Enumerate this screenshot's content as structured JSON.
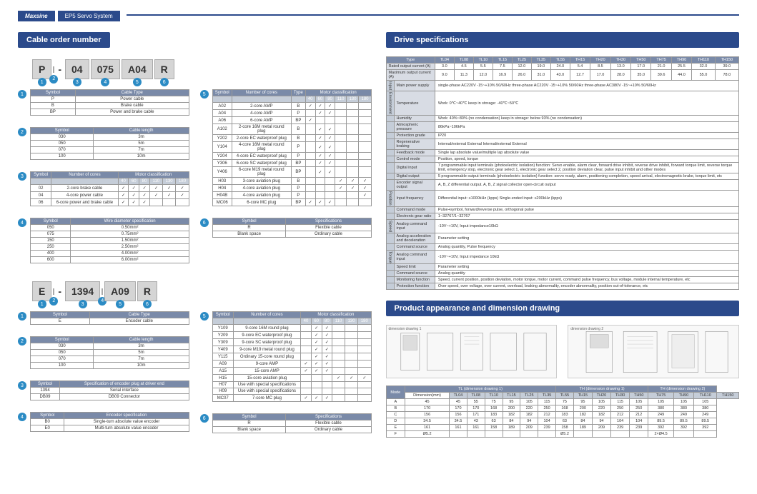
{
  "brand": "Maxsine",
  "subtitle": "EP5 Servo System",
  "sections": {
    "cable": "Cable order number",
    "drive": "Drive specifications",
    "product": "Product appearance and dimension drawing"
  },
  "partcode1": [
    "P",
    "",
    "-",
    "04",
    "075",
    "A04",
    "R"
  ],
  "partcode2": [
    "E",
    "",
    "-",
    "1394",
    "",
    "A09",
    "R"
  ],
  "t1_1": {
    "headers": [
      "Symbol",
      "Cable Type"
    ],
    "rows": [
      [
        "P",
        "Power cable"
      ],
      [
        "B",
        "Brake cable"
      ],
      [
        "BP",
        "Power and brake cable"
      ]
    ]
  },
  "t1_2": {
    "headers": [
      "Symbol",
      "Cable length"
    ],
    "rows": [
      [
        "030",
        "3m"
      ],
      [
        "050",
        "5m"
      ],
      [
        "070",
        "7m"
      ],
      [
        "100",
        "10m"
      ]
    ]
  },
  "t1_3": {
    "headers": [
      "Symbol",
      "Number of cores"
    ],
    "sub": [
      "40",
      "60",
      "80",
      "110",
      "130",
      "180"
    ],
    "rows": [
      [
        "02",
        "2-core brake cable",
        "✓",
        "✓",
        "✓",
        "✓",
        "✓",
        "✓"
      ],
      [
        "04",
        "4-core power cable",
        "✓",
        "✓",
        "✓",
        "✓",
        "✓",
        "✓"
      ],
      [
        "06",
        "6-core power and brake cable",
        "✓",
        "✓",
        "✓",
        "",
        "",
        ""
      ]
    ]
  },
  "t1_4": {
    "headers": [
      "Symbol",
      "Wire diameter specification"
    ],
    "rows": [
      [
        "050",
        "0.50mm²"
      ],
      [
        "075",
        "0.75mm²"
      ],
      [
        "150",
        "1.50mm²"
      ],
      [
        "250",
        "2.50mm²"
      ],
      [
        "400",
        "4.00mm²"
      ],
      [
        "600",
        "6.00mm²"
      ]
    ]
  },
  "t1_5": {
    "headers": [
      "Symbol",
      "Number of cores",
      "Type"
    ],
    "sub": [
      "40",
      "60",
      "80",
      "110",
      "130",
      "180"
    ],
    "rows": [
      [
        "A02",
        "2-core AMP",
        "B",
        "✓",
        "✓",
        "✓",
        "",
        "",
        ""
      ],
      [
        "A04",
        "4-core AMP",
        "P",
        "",
        "✓",
        "✓",
        "",
        "",
        ""
      ],
      [
        "A06",
        "6-core AMP",
        "BP",
        "✓",
        "",
        "",
        "",
        "",
        ""
      ],
      [
        "A102",
        "2-core 16M metal round plug",
        "B",
        "",
        "✓",
        "✓",
        "",
        "",
        ""
      ],
      [
        "Y202",
        "2-core EC waterproof plug",
        "B",
        "",
        "✓",
        "✓",
        "",
        "",
        ""
      ],
      [
        "Y104",
        "4-core 16M metal round plug",
        "P",
        "",
        "✓",
        "✓",
        "",
        "",
        ""
      ],
      [
        "Y204",
        "4-core EC waterproof plug",
        "P",
        "",
        "✓",
        "✓",
        "",
        "",
        ""
      ],
      [
        "Y306",
        "6-core SC waterproof plug",
        "BP",
        "",
        "✓",
        "✓",
        "",
        "",
        ""
      ],
      [
        "Y406",
        "6-core M19 metal round plug",
        "BP",
        "",
        "✓",
        "✓",
        "",
        "",
        ""
      ],
      [
        "H03",
        "3-core aviation plug",
        "B",
        "",
        "",
        "",
        "✓",
        "✓",
        "✓"
      ],
      [
        "H04",
        "4-core aviation plug",
        "P",
        "",
        "",
        "",
        "✓",
        "✓",
        "✓"
      ],
      [
        "H04B",
        "4-core aviation plug",
        "P",
        "",
        "",
        "",
        "",
        "",
        "✓"
      ],
      [
        "MC06",
        "6-core MC plug",
        "BP",
        "✓",
        "✓",
        "✓",
        "",
        "",
        ""
      ]
    ]
  },
  "t1_6": {
    "headers": [
      "Symbol",
      "Specifications"
    ],
    "rows": [
      [
        "R",
        "Flexible cable"
      ],
      [
        "Blank space",
        "Ordinary cable"
      ]
    ]
  },
  "t2_1": {
    "headers": [
      "Symbol",
      "Cable Type"
    ],
    "rows": [
      [
        "E",
        "Encoder cable"
      ]
    ]
  },
  "t2_2": {
    "headers": [
      "Symbol",
      "Cable length"
    ],
    "rows": [
      [
        "030",
        "3m"
      ],
      [
        "050",
        "5m"
      ],
      [
        "070",
        "7m"
      ],
      [
        "100",
        "10m"
      ]
    ]
  },
  "t2_3": {
    "headers": [
      "Symbol",
      "Specification of encoder plug at driver end"
    ],
    "rows": [
      [
        "1394",
        "Serial interface"
      ],
      [
        "DB09",
        "DB09 Connector"
      ]
    ]
  },
  "t2_4": {
    "headers": [
      "Symbol",
      "Encoder specification"
    ],
    "rows": [
      [
        "B0",
        "Single-turn absolute value encoder"
      ],
      [
        "E0",
        "Multi-turn absolute value encoder"
      ]
    ]
  },
  "t2_5": {
    "headers": [
      "Symbol",
      "Number of cores"
    ],
    "sub": [
      "40",
      "60",
      "80",
      "110",
      "130",
      "180"
    ],
    "rows": [
      [
        "Y109",
        "9-core 16M round plug",
        "",
        "✓",
        "✓",
        "",
        "",
        ""
      ],
      [
        "Y209",
        "9-core EC waterproof plug",
        "",
        "✓",
        "✓",
        "",
        "",
        ""
      ],
      [
        "Y309",
        "9-core SC waterproof plug",
        "",
        "✓",
        "✓",
        "",
        "",
        ""
      ],
      [
        "Y409",
        "9-core M19 metal round plug",
        "",
        "✓",
        "✓",
        "",
        "",
        ""
      ],
      [
        "Y115",
        "Ordinary 15-core round plug",
        "",
        "✓",
        "✓",
        "",
        "",
        ""
      ],
      [
        "A09",
        "9-core AMP",
        "✓",
        "✓",
        "✓",
        "",
        "",
        ""
      ],
      [
        "A15",
        "15-core AMP",
        "✓",
        "✓",
        "✓",
        "",
        "",
        ""
      ],
      [
        "H15",
        "15-core aviation plug",
        "",
        "",
        "",
        "✓",
        "✓",
        "✓"
      ],
      [
        "H07",
        "Use with special specifications",
        "",
        "",
        "",
        "",
        "",
        ""
      ],
      [
        "H09",
        "Use with special specifications",
        "",
        "",
        "",
        "",
        "",
        ""
      ],
      [
        "MC07",
        "7-core MC plug",
        "✓",
        "✓",
        "✓",
        "",
        "",
        ""
      ]
    ]
  },
  "t2_6": {
    "headers": [
      "Symbol",
      "Specifications"
    ],
    "rows": [
      [
        "R",
        "Flexible cable"
      ],
      [
        "Blank space",
        "Ordinary cable"
      ]
    ]
  },
  "drive_types": [
    "TL04",
    "TL08",
    "TL10",
    "TL15",
    "TL25",
    "TL35",
    "TL55",
    "TH15",
    "TH20",
    "TH30",
    "TH50",
    "TH75",
    "TH90",
    "TH110",
    "TH150"
  ],
  "drive_rows": [
    {
      "h": "Rated output current (A)",
      "v": [
        "3.0",
        "4.5",
        "5.5",
        "7.5",
        "12.0",
        "19.0",
        "24.0",
        "5.4",
        "8.5",
        "13.0",
        "17.0",
        "21.0",
        "25.5",
        "32.0",
        "39.0"
      ]
    },
    {
      "h": "Maximum output current (A)",
      "v": [
        "9.0",
        "11.3",
        "12.0",
        "16.9",
        "26.0",
        "31.0",
        "43.0",
        "12.7",
        "17.0",
        "28.0",
        "35.0",
        "39.6",
        "44.0",
        "55.0",
        "78.0"
      ]
    }
  ],
  "drive_specs": [
    {
      "g": "Input",
      "h": "Main power supply",
      "v": "single-phase AC220V  -15~+10% 50/60Hz          three-phase AC220V  -15~+10% 50/60Hz          three-phase AC380V  -15~+10% 50/60Hz"
    },
    {
      "g": "Environment",
      "h": "Temperature",
      "v": "Work: 0℃~40℃    keep in storage: -40℃~50℃"
    },
    {
      "g": "",
      "h": "Humidity",
      "v": "Work: 40%~80% (no condensation)    keep in storage: below 93% (no condensation)"
    },
    {
      "g": "",
      "h": "Atmospheric pressure",
      "v": "86kPa~106kPa"
    },
    {
      "g": "",
      "h": "Protection grade",
      "v": "IP20"
    },
    {
      "g": "",
      "h": "Regenerative braking",
      "v": "Internal/external          External          Internal/external          External"
    },
    {
      "g": "",
      "h": "Feedback mode",
      "v": "Single lap absolute value/multiple lap absolute value"
    },
    {
      "g": "",
      "h": "Control mode",
      "v": "Position, speed, torque"
    },
    {
      "g": "",
      "h": "Digital input",
      "v": "7 programmable input terminals (photoelectric isolation) function: Servo enable, alarm clear, forward drive inhibit, reverse drive inhibit, forward torque limit, reverse torque limit, emergency stop, electronic gear select 1, electronic gear select 2, position deviation clear, pulse input inhibit and other modes"
    },
    {
      "g": "",
      "h": "Digital output",
      "v": "5 programmable output terminals (photoelectric isolation) function: servo ready, alarm, positioning completion, speed arrival, electromagnetic brake, torque limit, etc"
    },
    {
      "g": "",
      "h": "Encoder signal output",
      "v": "A, B, Z differential output. A, B, Z signal collector open-circuit output"
    },
    {
      "g": "Position",
      "h": "Input frequency",
      "v": "Differential input: ≤1000kHz (kpps)  Single-ended input: ≤200kHz (kpps)"
    },
    {
      "g": "",
      "h": "Command mode",
      "v": "Pulse+symbol, forward/reverse pulse, orthogonal pulse"
    },
    {
      "g": "",
      "h": "Electronic gear ratio",
      "v": "1~32767/1~32767"
    },
    {
      "g": "Speed",
      "h": "Analog command input",
      "v": "-10V~+10V, Input impedance10kΩ"
    },
    {
      "g": "",
      "h": "Analog acceleration and deceleration",
      "v": "Parameter setting"
    },
    {
      "g": "",
      "h": "Command source",
      "v": "Analog quantity, Pulse frequency"
    },
    {
      "g": "Torque",
      "h": "Analog command input",
      "v": "-10V~+10V, Input impedance 10kΩ"
    },
    {
      "g": "",
      "h": "Speed limit",
      "v": "Parameter setting"
    },
    {
      "g": "",
      "h": "Command source",
      "v": "Analog quantity"
    },
    {
      "g": "",
      "h": "Monitoring function",
      "v": "Speed, current position, position deviation, motor torque, motor current, command pulse frequency, bus voltage, module internal temperature, etc"
    },
    {
      "g": "",
      "h": "Protection function",
      "v": "Over speed, over voltage, over current, overload, braking abnormality, encoder abnormality, position out-of-tolerance, etc"
    }
  ],
  "dim_modes": [
    "TL (dimension drawing 1)",
    "TH (dimension drawing 1)",
    "TH (dimension drawing 2)"
  ],
  "dim_types": [
    "TL04",
    "TL08",
    "TL10",
    "TL15",
    "TL25",
    "TL35",
    "TL55",
    "TH15",
    "TH20",
    "TH30",
    "TH50",
    "TH75",
    "TH90",
    "TH110",
    "TH150"
  ],
  "dim_rows": [
    {
      "h": "A",
      "v": [
        "45",
        "45",
        "55",
        "75",
        "95",
        "105",
        "115",
        "75",
        "95",
        "105",
        "115",
        "105",
        "105",
        "105",
        "105"
      ]
    },
    {
      "h": "B",
      "v": [
        "170",
        "170",
        "170",
        "168",
        "200",
        "220",
        "250",
        "168",
        "200",
        "220",
        "250",
        "250",
        "380",
        "380",
        "380"
      ]
    },
    {
      "h": "C",
      "v": [
        "156",
        "156",
        "171",
        "183",
        "182",
        "182",
        "212",
        "183",
        "182",
        "182",
        "212",
        "212",
        "249",
        "249",
        "249"
      ]
    },
    {
      "h": "D",
      "v": [
        "34.5",
        "34.5",
        "43",
        "63",
        "84",
        "94",
        "104",
        "63",
        "84",
        "94",
        "104",
        "104",
        "89.5",
        "89.5",
        "89.5"
      ]
    },
    {
      "h": "E",
      "v": [
        "161",
        "161",
        "161",
        "158",
        "189",
        "209",
        "239",
        "158",
        "189",
        "209",
        "239",
        "239",
        "392",
        "392",
        "392"
      ]
    },
    {
      "h": "F",
      "v": [
        "Ø5.2",
        "",
        "",
        "",
        "",
        "",
        "",
        "Ø5.2",
        "",
        "",
        "",
        "",
        "2×Ø4.5",
        "",
        ""
      ]
    }
  ],
  "drawings": [
    "dimension drawing 1",
    "dimension drawing 2"
  ],
  "colors": {
    "primary": "#2b4a8b",
    "accent": "#2b8bc4",
    "th_bg": "#7a8aa8",
    "sub_bg": "#c5cdd8"
  }
}
